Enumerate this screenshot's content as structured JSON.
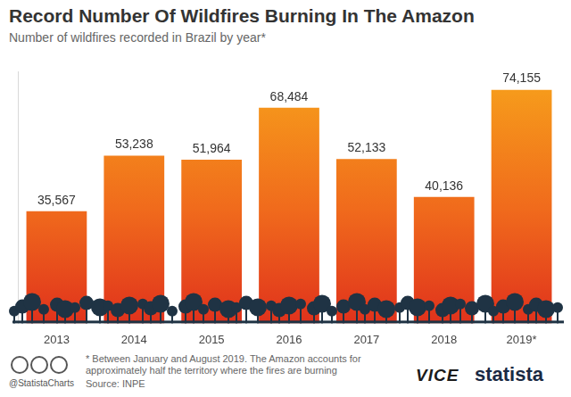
{
  "chart_data": {
    "type": "bar",
    "title": "Record Number Of Wildfires Burning In The Amazon",
    "subtitle": "Number of wildfires recorded in Brazil by year*",
    "categories": [
      "2013",
      "2014",
      "2015",
      "2016",
      "2017",
      "2018",
      "2019*"
    ],
    "values": [
      35567,
      53238,
      51964,
      68484,
      52133,
      40136,
      74155
    ],
    "value_labels": [
      "35,567",
      "53,238",
      "51,964",
      "68,484",
      "52,133",
      "40,136",
      "74,155"
    ],
    "color": "#f7a21b",
    "ylim": [
      0,
      80000
    ],
    "grid": false,
    "data_labels": true,
    "tick_labels": "x",
    "note": "* Between January and August 2019. The Amazon accounts for approximately half the territory where the fires are burning",
    "source": "Source: INPE",
    "credit": "@StatistaCharts",
    "logos": [
      "VICE",
      "statista"
    ]
  }
}
